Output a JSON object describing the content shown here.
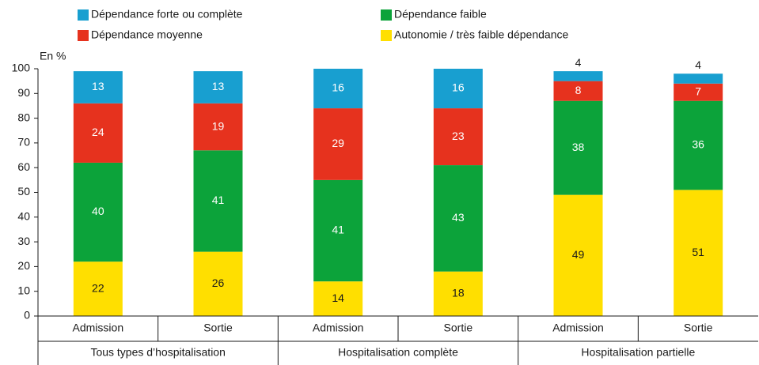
{
  "chart_data": {
    "type": "stacked_bar",
    "y_label": "En %",
    "categories": [
      "Admission",
      "Sortie",
      "Admission",
      "Sortie",
      "Admission",
      "Sortie"
    ],
    "groups": [
      "Tous types d’hospitalisation",
      "Hospitalisation complète",
      "Hospitalisation partielle"
    ],
    "series": [
      {
        "name": "Autonomie / très faible dépendance",
        "color": "#ffdf00",
        "values": [
          22,
          26,
          14,
          18,
          49,
          51
        ]
      },
      {
        "name": "Dépendance faible",
        "color": "#0ca33a",
        "values": [
          40,
          41,
          41,
          43,
          38,
          36
        ]
      },
      {
        "name": "Dépendance moyenne",
        "color": "#e6321e",
        "values": [
          24,
          19,
          29,
          23,
          8,
          7
        ]
      },
      {
        "name": "Dépendance forte ou complète",
        "color": "#189fd0",
        "values": [
          13,
          13,
          16,
          16,
          4,
          4
        ]
      }
    ],
    "ylim": [
      0,
      100
    ],
    "yticks": [
      0,
      10,
      20,
      30,
      40,
      50,
      60,
      70,
      80,
      90,
      100
    ]
  }
}
